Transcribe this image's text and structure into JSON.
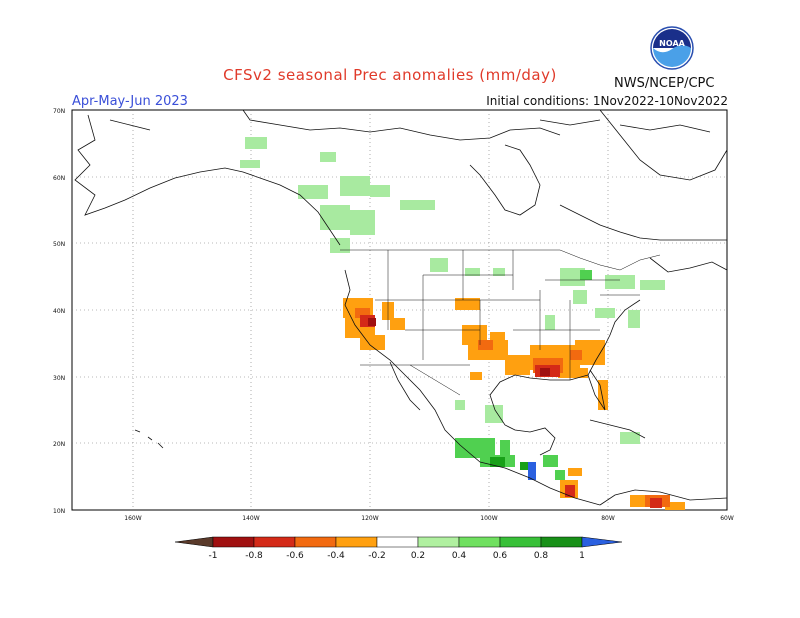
{
  "title": "CFSv2 seasonal Prec anomalies (mm/day)",
  "period": "Apr-May-Jun 2023",
  "initial_conditions": "Initial conditions: 1Nov2022-10Nov2022",
  "agency": "NWS/NCEP/CPC",
  "logo_text": "NOAA",
  "map": {
    "lat_labels": [
      "70N",
      "60N",
      "50N",
      "40N",
      "30N",
      "20N",
      "10N"
    ],
    "lon_labels": [
      "160W",
      "140W",
      "120W",
      "100W",
      "80W",
      "60W"
    ]
  },
  "colorbar": {
    "labels": [
      "-1",
      "-0.8",
      "-0.6",
      "-0.4",
      "-0.2",
      "0.2",
      "0.4",
      "0.6",
      "0.8",
      "1"
    ],
    "colors": [
      "#5a3a2a",
      "#a01010",
      "#d42a18",
      "#f26a10",
      "#ffa010",
      "#ffffff",
      "#b0f0a0",
      "#70e060",
      "#38c038",
      "#189018",
      "#2a60e0"
    ]
  },
  "anomaly_colors": {
    "light_green": "#a8eaa0",
    "green": "#50d050",
    "dark_green": "#18a018",
    "blue": "#2a60e0",
    "orange": "#ffa010",
    "dark_orange": "#f26a10",
    "red": "#d42a18",
    "dark_red": "#a01010"
  }
}
